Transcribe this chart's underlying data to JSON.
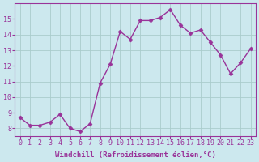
{
  "x": [
    0,
    1,
    2,
    3,
    4,
    5,
    6,
    7,
    8,
    9,
    10,
    11,
    12,
    13,
    14,
    15,
    16,
    17,
    18,
    19,
    20,
    21,
    22,
    23
  ],
  "y": [
    8.7,
    8.2,
    8.2,
    8.4,
    8.9,
    8.0,
    7.8,
    8.3,
    10.9,
    12.1,
    14.2,
    13.7,
    14.9,
    14.9,
    15.1,
    15.6,
    14.6,
    14.1,
    14.3,
    13.5,
    12.7,
    11.5,
    12.2,
    13.1
  ],
  "line_color": "#993399",
  "marker": "D",
  "marker_size": 2.5,
  "bg_color": "#cce8ee",
  "grid_color": "#aacccc",
  "plot_bg": "#cce8ee",
  "xlabel": "Windchill (Refroidissement éolien,°C)",
  "xlabel_color": "#993399",
  "tick_color": "#993399",
  "ylim": [
    7.5,
    16.0
  ],
  "xlim": [
    -0.5,
    23.5
  ],
  "yticks": [
    8,
    9,
    10,
    11,
    12,
    13,
    14,
    15
  ],
  "xticks": [
    0,
    1,
    2,
    3,
    4,
    5,
    6,
    7,
    8,
    9,
    10,
    11,
    12,
    13,
    14,
    15,
    16,
    17,
    18,
    19,
    20,
    21,
    22,
    23
  ],
  "xlabel_fontsize": 6.5,
  "tick_fontsize": 6.0
}
